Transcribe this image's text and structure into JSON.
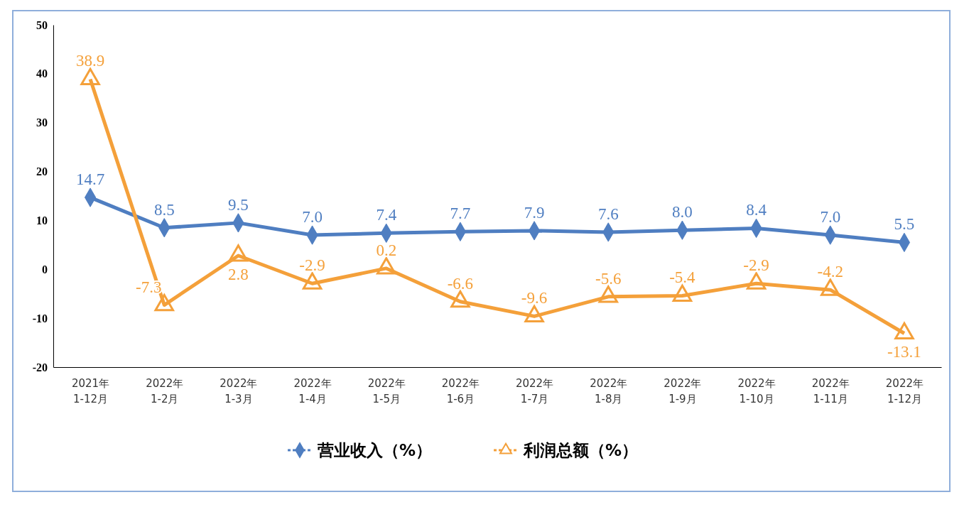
{
  "chart_data": {
    "type": "line",
    "categories": [
      "2021年\n1-12月",
      "2022年\n1-2月",
      "2022年\n1-3月",
      "2022年\n1-4月",
      "2022年\n1-5月",
      "2022年\n1-6月",
      "2022年\n1-7月",
      "2022年\n1-8月",
      "2022年\n1-9月",
      "2022年\n1-10月",
      "2022年\n1-11月",
      "2022年\n1-12月"
    ],
    "series": [
      {
        "name": "营业收入（%）",
        "color": "#4f7ec1",
        "marker": "diamond",
        "values": [
          14.7,
          8.5,
          9.5,
          7.0,
          7.4,
          7.7,
          7.9,
          7.6,
          8.0,
          8.4,
          7.0,
          5.5
        ],
        "value_labels": [
          "14.7",
          "8.5",
          "9.5",
          "7.0",
          "7.4",
          "7.7",
          "7.9",
          "7.6",
          "8.0",
          "8.4",
          "7.0",
          "5.5"
        ]
      },
      {
        "name": "利润总额（%）",
        "color": "#f4a03a",
        "marker": "triangle",
        "values": [
          38.9,
          -7.3,
          2.8,
          -2.9,
          0.2,
          -6.6,
          -9.6,
          -5.6,
          -5.4,
          -2.9,
          -4.2,
          -13.1
        ],
        "value_labels": [
          "38.9",
          "-7.3",
          "2.8",
          "-2.9",
          "0.2",
          "-6.6",
          "-9.6",
          "-5.6",
          "-5.4",
          "-2.9",
          "-4.2",
          "-13.1"
        ]
      }
    ],
    "ylim": [
      -20,
      50
    ],
    "yticks": [
      -20,
      -10,
      0,
      10,
      20,
      30,
      40,
      50
    ],
    "grid": false,
    "legend": "bottom",
    "line_style": "solid"
  }
}
